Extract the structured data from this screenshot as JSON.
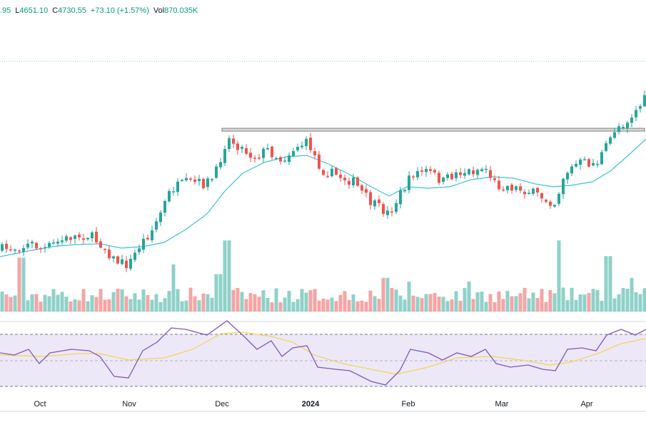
{
  "header": {
    "open_tail": ".95",
    "low_label": "L",
    "low_value": "4651.10",
    "close_label": "C",
    "close_value": "4730.55",
    "change": "+73.10 (+1.57%)",
    "vol_label": "Vol",
    "vol_value": "870.035K"
  },
  "colors": {
    "up": "#26a69a",
    "down": "#ef5350",
    "vol_up": "#8fd1c9",
    "vol_down": "#f4a5a5",
    "ma_line": "#3cc3d6",
    "rsi_line": "#7e57c2",
    "rsi_ma": "#f2d64a",
    "rsi_band": "#ede8f8",
    "resistance": "#808080"
  },
  "chart_data": {
    "type": "candlestick",
    "x_tick_labels": [
      "Oct",
      "Nov",
      "Dec",
      "2024",
      "Feb",
      "Mar",
      "Apr"
    ],
    "price_panel": {
      "series": [
        "ohlc",
        "moving average",
        "horizontal resistance level"
      ],
      "resistance_from": "Dec",
      "trend": "uptrend Oct–Dec, consolidation Dec–Mar, breakout above resistance in Apr"
    },
    "volume_panel": {
      "colored_by": "candle direction"
    },
    "rsi_panel": {
      "bands": [
        70,
        50,
        30
      ],
      "series": [
        "rsi",
        "rsi moving average"
      ]
    }
  }
}
